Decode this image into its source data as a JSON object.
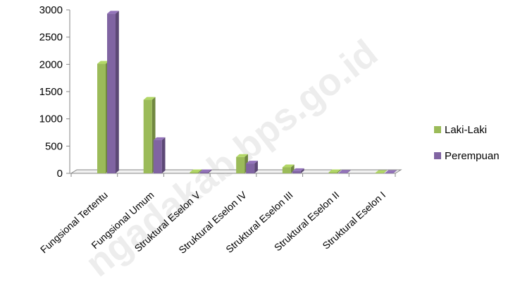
{
  "chart_data": {
    "type": "bar",
    "categories": [
      "Fungsional Tertentu",
      "Fungsional Umum",
      "Struktural Eselon V",
      "Struktural Eselon IV",
      "Struktural Eselon III",
      "Struktural  Eselon II",
      "Struktural Eselon I"
    ],
    "series": [
      {
        "name": "Laki-Laki",
        "color": "#9bbb59",
        "values": [
          2010,
          1350,
          20,
          300,
          110,
          20,
          5
        ]
      },
      {
        "name": "Perempuan",
        "color": "#8064a2",
        "values": [
          2930,
          610,
          20,
          180,
          40,
          10,
          5
        ]
      }
    ],
    "ylim": [
      0,
      3000
    ],
    "yticks": [
      "0",
      "500",
      "1000",
      "1500",
      "2000",
      "2500",
      "3000"
    ],
    "legend_position": "right",
    "grid": false,
    "style": "3d-clustered-column"
  },
  "watermark": "ngadakab.bps.go.id"
}
